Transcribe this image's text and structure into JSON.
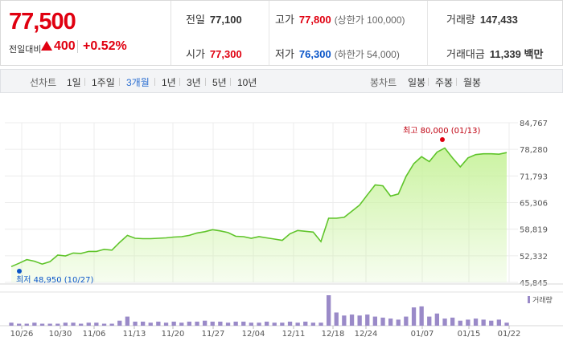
{
  "quote": {
    "price": "77,500",
    "change_label": "전일대비",
    "change_value": "400",
    "change_pct": "+0.52%",
    "prev_close_label": "전일",
    "prev_close": "77,100",
    "open_label": "시가",
    "open": "77,300",
    "high_label": "고가",
    "high": "77,800",
    "upper_limit": "(상한가 100,000)",
    "low_label": "저가",
    "low": "76,300",
    "lower_limit": "(하한가 54,000)",
    "volume_label": "거래량",
    "volume": "147,433",
    "value_label": "거래대금",
    "value": "11,339 백만",
    "color_up": "#e00010",
    "color_down": "#0a55c8"
  },
  "toolbar": {
    "line_chart_label": "선차트",
    "periods": [
      "1일",
      "1주일",
      "3개월",
      "1년",
      "3년",
      "5년",
      "10년"
    ],
    "selected_period": "3개월",
    "candle_chart_label": "봉차트",
    "candle_periods": [
      "일봉",
      "주봉",
      "월봉"
    ]
  },
  "chart_data": {
    "type": "area",
    "y_ticks": [
      "84,767",
      "78,280",
      "71,793",
      "65,306",
      "58,819",
      "52,332",
      "45,845"
    ],
    "ylim": [
      45845,
      84767
    ],
    "x_ticks": [
      "10/26",
      "10/30",
      "11/06",
      "11/13",
      "11/20",
      "11/27",
      "12/04",
      "12/11",
      "12/18",
      "12/24",
      "01/07",
      "01/15",
      "01/22"
    ],
    "high_annotation": "최고 80,000 (01/13)",
    "low_annotation": "최저 48,950 (10/27)",
    "volume_label": "거래량",
    "line_color": "#5fc42a",
    "fill_color": "#c8f29c",
    "volume_color": "#9a8ac8",
    "grid": true,
    "prices": [
      49700,
      50500,
      51400,
      51000,
      50300,
      50900,
      52500,
      52300,
      53000,
      52900,
      53400,
      53400,
      53900,
      53700,
      55600,
      57300,
      56600,
      56500,
      56500,
      56600,
      56700,
      56900,
      57000,
      57300,
      57900,
      58200,
      58700,
      58400,
      58000,
      57100,
      57000,
      56600,
      57000,
      56700,
      56400,
      56100,
      57700,
      58500,
      58300,
      58100,
      55800,
      61500,
      61500,
      61700,
      63200,
      64700,
      67200,
      69600,
      69400,
      66900,
      67400,
      71700,
      74800,
      76500,
      75300,
      77600,
      78600,
      76200,
      74000,
      76200,
      77000,
      77200,
      77200,
      77100,
      77500
    ],
    "volumes": [
      3,
      2,
      2,
      3,
      2,
      2,
      2,
      3,
      3,
      2,
      3,
      3,
      2,
      2,
      5,
      9,
      4,
      4,
      3,
      4,
      3,
      4,
      3,
      4,
      4,
      5,
      4,
      4,
      3,
      4,
      4,
      3,
      3,
      4,
      3,
      3,
      4,
      3,
      4,
      3,
      3,
      30,
      13,
      10,
      11,
      10,
      11,
      9,
      8,
      7,
      6,
      9,
      18,
      19,
      9,
      12,
      7,
      8,
      5,
      6,
      7,
      6,
      5,
      6,
      3
    ]
  }
}
